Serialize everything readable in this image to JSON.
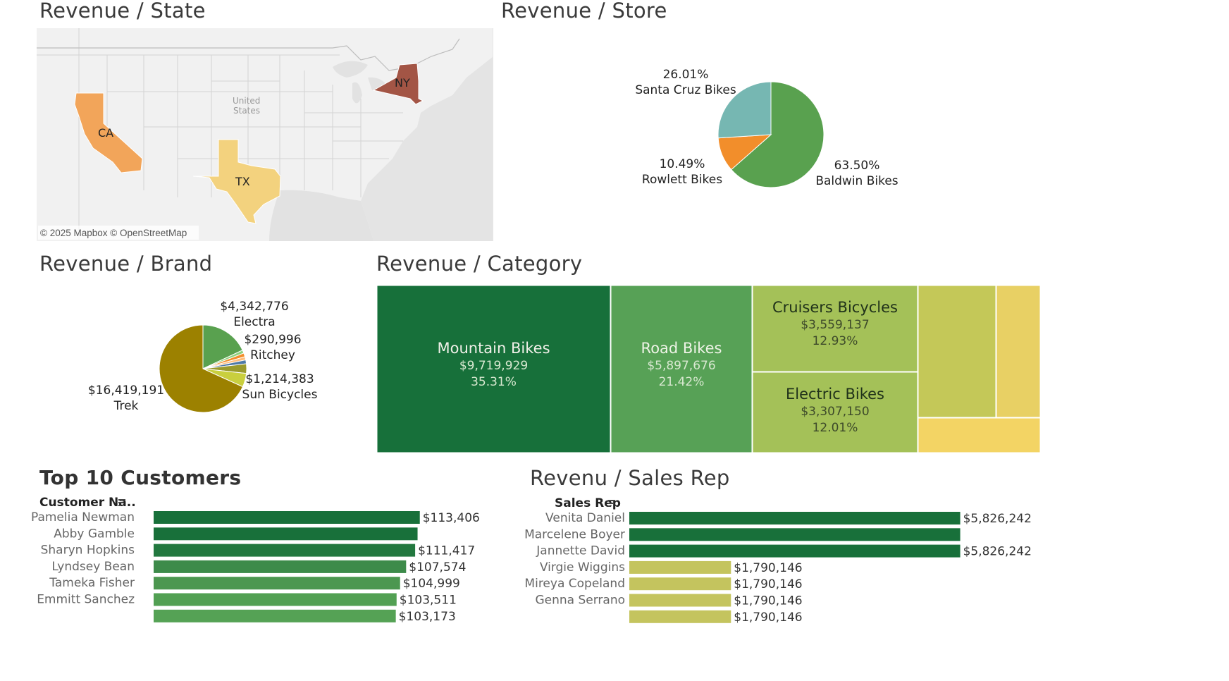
{
  "titles": {
    "state": "Revenue / State",
    "store": "Revenue / Store",
    "brand": "Revenue / Brand",
    "category": "Revenue / Category",
    "customers": "Top 10 Customers",
    "salesrep": "Revenu / Sales Rep"
  },
  "map": {
    "country_label_1": "United",
    "country_label_2": "States",
    "attribution": "© 2025 Mapbox © OpenStreetMap",
    "states": [
      {
        "code": "NY",
        "color": "#a35545"
      },
      {
        "code": "CA",
        "color": "#f2a55a"
      },
      {
        "code": "TX",
        "color": "#f3d27e"
      }
    ]
  },
  "chart_data": [
    {
      "type": "pie",
      "chart": "store",
      "slices": [
        {
          "name": "Baldwin Bikes",
          "pct": 63.5,
          "label": "63.50%",
          "color": "#59a14f"
        },
        {
          "name": "Rowlett Bikes",
          "pct": 10.49,
          "label": "10.49%",
          "color": "#f28e2b"
        },
        {
          "name": "Santa Cruz Bikes",
          "pct": 26.01,
          "label": "26.01%",
          "color": "#76b7b2"
        }
      ]
    },
    {
      "type": "pie",
      "chart": "brand",
      "slices": [
        {
          "name": "Electra",
          "value": 4342776,
          "label": "$4,342,776",
          "color": "#59a14f"
        },
        {
          "name": "",
          "value": 280000,
          "label": "",
          "color": "#8cd17d"
        },
        {
          "name": "",
          "value": 330000,
          "label": "",
          "color": "#f28e2b"
        },
        {
          "name": "Ritchey",
          "value": 290996,
          "label": "$290,996",
          "color": "#ffbe7d"
        },
        {
          "name": "",
          "value": 340000,
          "label": "",
          "color": "#4e79a7"
        },
        {
          "name": "",
          "value": 850000,
          "label": "",
          "color": "#9a9a2c"
        },
        {
          "name": "Sun Bicycles",
          "value": 1214383,
          "label": "$1,214,383",
          "color": "#c9cf3e"
        },
        {
          "name": "Trek",
          "value": 16419191,
          "label": "$16,419,191",
          "color": "#9c8100"
        }
      ]
    },
    {
      "type": "treemap",
      "chart": "category",
      "items": [
        {
          "name": "Mountain Bikes",
          "value_label": "$9,719,929",
          "pct_label": "35.31%",
          "color": "#17703a"
        },
        {
          "name": "Road Bikes",
          "value_label": "$5,897,676",
          "pct_label": "21.42%",
          "color": "#57a156"
        },
        {
          "name": "Cruisers Bicycles",
          "value_label": "$3,559,137",
          "pct_label": "12.93%",
          "color": "#a4c158"
        },
        {
          "name": "Electric Bikes",
          "value_label": "$3,307,150",
          "pct_label": "12.01%",
          "color": "#a4c158"
        },
        {
          "name": "",
          "value_label": "",
          "pct_label": "",
          "color": "#c4c858"
        },
        {
          "name": "",
          "value_label": "",
          "pct_label": "",
          "color": "#e8d064"
        },
        {
          "name": "",
          "value_label": "",
          "pct_label": "",
          "color": "#f3d464"
        }
      ]
    },
    {
      "type": "bar",
      "chart": "customers",
      "header": "Customer Na..",
      "xlim": [
        0,
        130000
      ],
      "rows": [
        {
          "name": "Pamelia Newman",
          "value": 113406,
          "label": "$113,406",
          "color": "#18703a"
        },
        {
          "name": "Abby Gamble",
          "value": 112450,
          "label": "",
          "color": "#18703a"
        },
        {
          "name": "Sharyn Hopkins",
          "value": 111417,
          "label": "$111,417",
          "color": "#22783f"
        },
        {
          "name": "Lyndsey Bean",
          "value": 107574,
          "label": "$107,574",
          "color": "#3d8b4a"
        },
        {
          "name": "Tameka Fisher",
          "value": 104999,
          "label": "$104,999",
          "color": "#4c9750"
        },
        {
          "name": "Emmitt Sanchez",
          "value": 103511,
          "label": "$103,511",
          "color": "#52a053"
        },
        {
          "name": "",
          "value": 103173,
          "label": "$103,173",
          "color": "#55a255"
        }
      ]
    },
    {
      "type": "bar",
      "chart": "salesrep",
      "header": "Sales Rep",
      "xlim": [
        0,
        6700000
      ],
      "rows": [
        {
          "name": "Venita Daniel",
          "value": 5826242,
          "label": "$5,826,242",
          "color": "#18703a"
        },
        {
          "name": "Marcelene Boyer",
          "value": 5826242,
          "label": "",
          "color": "#18703a"
        },
        {
          "name": "Jannette David",
          "value": 5826242,
          "label": "$5,826,242",
          "color": "#18703a"
        },
        {
          "name": "Virgie Wiggins",
          "value": 1790146,
          "label": "$1,790,146",
          "color": "#c4c45e"
        },
        {
          "name": "Mireya Copeland",
          "value": 1790146,
          "label": "$1,790,146",
          "color": "#c4c45e"
        },
        {
          "name": "Genna Serrano",
          "value": 1790146,
          "label": "$1,790,146",
          "color": "#c4c45e"
        },
        {
          "name": "",
          "value": 1790146,
          "label": "$1,790,146",
          "color": "#c4c45e"
        }
      ]
    }
  ]
}
